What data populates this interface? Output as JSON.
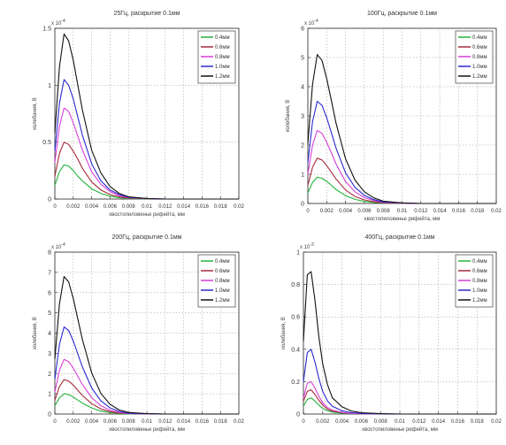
{
  "figure": {
    "series_colors": [
      "#22b33a",
      "#a62a3a",
      "#d63fd6",
      "#2a2ad0",
      "#111111"
    ],
    "legend_placement": "top-right"
  },
  "chart_data": [
    {
      "type": "line",
      "title": "25Гц, раскрытие 0.1мм",
      "xlabel": "хвостопиловенье рифейта, мм",
      "ylabel": "колебания, В",
      "multiplier": "x 10",
      "multiplier_exp": "-4",
      "xlim": [
        0,
        0.02
      ],
      "ylim": [
        0,
        1.5
      ],
      "grid": true,
      "x_ticks": [
        "0",
        "0.002",
        "0.004",
        "0.006",
        "0.008",
        "0.01",
        "0.012",
        "0.014",
        "0.016",
        "0.018",
        "0.02"
      ],
      "y_ticks": [
        "0",
        "0.5",
        "1",
        "1.5"
      ],
      "x": [
        0,
        0.0005,
        0.001,
        0.0015,
        0.002,
        0.0025,
        0.003,
        0.004,
        0.005,
        0.006,
        0.007,
        0.008,
        0.01,
        0.012,
        0.014,
        0.016,
        0.018,
        0.02
      ],
      "series": [
        {
          "name": "0.4мм",
          "values": [
            0.12,
            0.24,
            0.3,
            0.29,
            0.25,
            0.2,
            0.16,
            0.09,
            0.05,
            0.025,
            0.012,
            0.005,
            0.001,
            0,
            0,
            0,
            0,
            0
          ]
        },
        {
          "name": "0.6мм",
          "values": [
            0.2,
            0.4,
            0.5,
            0.48,
            0.42,
            0.35,
            0.27,
            0.15,
            0.08,
            0.04,
            0.02,
            0.008,
            0.002,
            0,
            0,
            0,
            0,
            0
          ]
        },
        {
          "name": "0.8мм",
          "values": [
            0.32,
            0.64,
            0.8,
            0.77,
            0.67,
            0.55,
            0.43,
            0.24,
            0.13,
            0.065,
            0.03,
            0.012,
            0.003,
            0,
            0,
            0,
            0,
            0
          ]
        },
        {
          "name": "1.0мм",
          "values": [
            0.42,
            0.84,
            1.05,
            1.0,
            0.88,
            0.72,
            0.56,
            0.31,
            0.16,
            0.08,
            0.04,
            0.016,
            0.004,
            0,
            0,
            0,
            0,
            0
          ]
        },
        {
          "name": "1.2мм",
          "values": [
            0.58,
            1.16,
            1.45,
            1.39,
            1.22,
            1.0,
            0.78,
            0.43,
            0.23,
            0.11,
            0.05,
            0.02,
            0.005,
            0,
            0,
            0,
            0,
            0
          ]
        }
      ]
    },
    {
      "type": "line",
      "title": "100Гц, раскрытие 0.1мм",
      "xlabel": "хвостопиловенье рифейта, мм",
      "ylabel": "колебания, В",
      "multiplier": "x 10",
      "multiplier_exp": "-4",
      "xlim": [
        0,
        0.02
      ],
      "ylim": [
        0,
        6
      ],
      "grid": true,
      "x_ticks": [
        "0",
        "0.002",
        "0.004",
        "0.006",
        "0.008",
        "0.01",
        "0.012",
        "0.014",
        "0.016",
        "0.018",
        "0.02"
      ],
      "y_ticks": [
        "0",
        "1",
        "2",
        "3",
        "4",
        "5",
        "6"
      ],
      "x": [
        0,
        0.0005,
        0.001,
        0.0015,
        0.002,
        0.0025,
        0.003,
        0.004,
        0.005,
        0.006,
        0.007,
        0.008,
        0.01,
        0.012,
        0.014,
        0.016,
        0.018,
        0.02
      ],
      "series": [
        {
          "name": "0.4мм",
          "values": [
            0.36,
            0.72,
            0.9,
            0.86,
            0.76,
            0.62,
            0.48,
            0.27,
            0.14,
            0.07,
            0.035,
            0.015,
            0.004,
            0,
            0,
            0,
            0,
            0
          ]
        },
        {
          "name": "0.6мм",
          "values": [
            0.62,
            1.24,
            1.55,
            1.49,
            1.3,
            1.07,
            0.84,
            0.46,
            0.24,
            0.12,
            0.06,
            0.025,
            0.006,
            0,
            0,
            0,
            0,
            0
          ]
        },
        {
          "name": "0.8мм",
          "values": [
            1.0,
            2.0,
            2.5,
            2.4,
            2.1,
            1.73,
            1.35,
            0.75,
            0.4,
            0.2,
            0.1,
            0.04,
            0.01,
            0,
            0,
            0,
            0,
            0
          ]
        },
        {
          "name": "1.0мм",
          "values": [
            1.4,
            2.8,
            3.5,
            3.36,
            2.94,
            2.42,
            1.89,
            1.05,
            0.55,
            0.28,
            0.13,
            0.055,
            0.015,
            0,
            0,
            0,
            0,
            0
          ]
        },
        {
          "name": "1.2мм",
          "values": [
            2.04,
            4.08,
            5.1,
            4.9,
            4.28,
            3.52,
            2.75,
            1.53,
            0.8,
            0.4,
            0.19,
            0.08,
            0.02,
            0,
            0,
            0,
            0,
            0
          ]
        }
      ]
    },
    {
      "type": "line",
      "title": "200Гц, раскрытие 0.1мм",
      "xlabel": "хвостопиловенье рифейта, мм",
      "ylabel": "колебания, В",
      "multiplier": "x 10",
      "multiplier_exp": "-4",
      "xlim": [
        0,
        0.02
      ],
      "ylim": [
        0,
        8
      ],
      "grid": true,
      "x_ticks": [
        "0",
        "0.002",
        "0.004",
        "0.006",
        "0.008",
        "0.01",
        "0.012",
        "0.014",
        "0.016",
        "0.018",
        "0.02"
      ],
      "y_ticks": [
        "0",
        "1",
        "2",
        "3",
        "4",
        "5",
        "6",
        "7",
        "8"
      ],
      "x": [
        0,
        0.0005,
        0.001,
        0.0015,
        0.002,
        0.0025,
        0.003,
        0.004,
        0.005,
        0.006,
        0.007,
        0.008,
        0.01,
        0.012,
        0.014,
        0.016,
        0.018,
        0.02
      ],
      "series": [
        {
          "name": "0.4мм",
          "values": [
            0.4,
            0.8,
            1.0,
            0.96,
            0.84,
            0.69,
            0.54,
            0.3,
            0.15,
            0.07,
            0.03,
            0.01,
            0.003,
            0,
            0,
            0,
            0,
            0
          ]
        },
        {
          "name": "0.6мм",
          "values": [
            0.68,
            1.36,
            1.7,
            1.63,
            1.43,
            1.17,
            0.92,
            0.51,
            0.26,
            0.12,
            0.05,
            0.02,
            0.005,
            0,
            0,
            0,
            0,
            0
          ]
        },
        {
          "name": "0.8мм",
          "values": [
            1.08,
            2.16,
            2.7,
            2.59,
            2.27,
            1.86,
            1.46,
            0.81,
            0.41,
            0.19,
            0.08,
            0.03,
            0.008,
            0,
            0,
            0,
            0,
            0
          ]
        },
        {
          "name": "1.0мм",
          "values": [
            1.72,
            3.44,
            4.3,
            4.13,
            3.61,
            2.97,
            2.32,
            1.29,
            0.65,
            0.3,
            0.13,
            0.05,
            0.012,
            0,
            0,
            0,
            0,
            0
          ]
        },
        {
          "name": "1.2мм",
          "values": [
            2.72,
            5.44,
            6.8,
            6.53,
            5.71,
            4.69,
            3.67,
            2.04,
            1.02,
            0.48,
            0.2,
            0.08,
            0.02,
            0,
            0,
            0,
            0,
            0
          ]
        }
      ]
    },
    {
      "type": "line",
      "title": "400Гц, раскрытие 0.1мм",
      "xlabel": "хвостопиловенье рифейта, мм",
      "ylabel": "колебания, В",
      "multiplier": "x 10",
      "multiplier_exp": "-3",
      "xlim": [
        0,
        0.02
      ],
      "ylim": [
        0,
        1
      ],
      "grid": true,
      "x_ticks": [
        "0",
        "0.002",
        "0.004",
        "0.006",
        "0.008",
        "0.01",
        "0.012",
        "0.014",
        "0.016",
        "0.018",
        "0.02"
      ],
      "y_ticks": [
        "0",
        "0.2",
        "0.4",
        "0.6",
        "0.8",
        "1"
      ],
      "x": [
        0,
        0.0004,
        0.0008,
        0.0012,
        0.0016,
        0.002,
        0.0025,
        0.003,
        0.004,
        0.005,
        0.006,
        0.008,
        0.01,
        0.012,
        0.014,
        0.016,
        0.018,
        0.02
      ],
      "series": [
        {
          "name": "0.4мм",
          "values": [
            0.05,
            0.09,
            0.1,
            0.08,
            0.055,
            0.035,
            0.02,
            0.012,
            0.005,
            0.002,
            0.001,
            0,
            0,
            0,
            0,
            0,
            0,
            0
          ]
        },
        {
          "name": "0.6мм",
          "values": [
            0.08,
            0.14,
            0.15,
            0.12,
            0.085,
            0.055,
            0.03,
            0.018,
            0.008,
            0.003,
            0.001,
            0,
            0,
            0,
            0,
            0,
            0,
            0
          ]
        },
        {
          "name": "0.8мм",
          "values": [
            0.1,
            0.19,
            0.2,
            0.16,
            0.11,
            0.07,
            0.04,
            0.024,
            0.01,
            0.004,
            0.002,
            0,
            0,
            0,
            0,
            0,
            0,
            0
          ]
        },
        {
          "name": "1.0мм",
          "values": [
            0.2,
            0.38,
            0.4,
            0.32,
            0.22,
            0.14,
            0.08,
            0.048,
            0.02,
            0.008,
            0.004,
            0.001,
            0,
            0,
            0,
            0,
            0,
            0
          ]
        },
        {
          "name": "1.2мм",
          "values": [
            0.45,
            0.86,
            0.88,
            0.7,
            0.48,
            0.31,
            0.18,
            0.1,
            0.045,
            0.018,
            0.008,
            0.002,
            0,
            0,
            0,
            0,
            0,
            0
          ]
        }
      ]
    }
  ]
}
